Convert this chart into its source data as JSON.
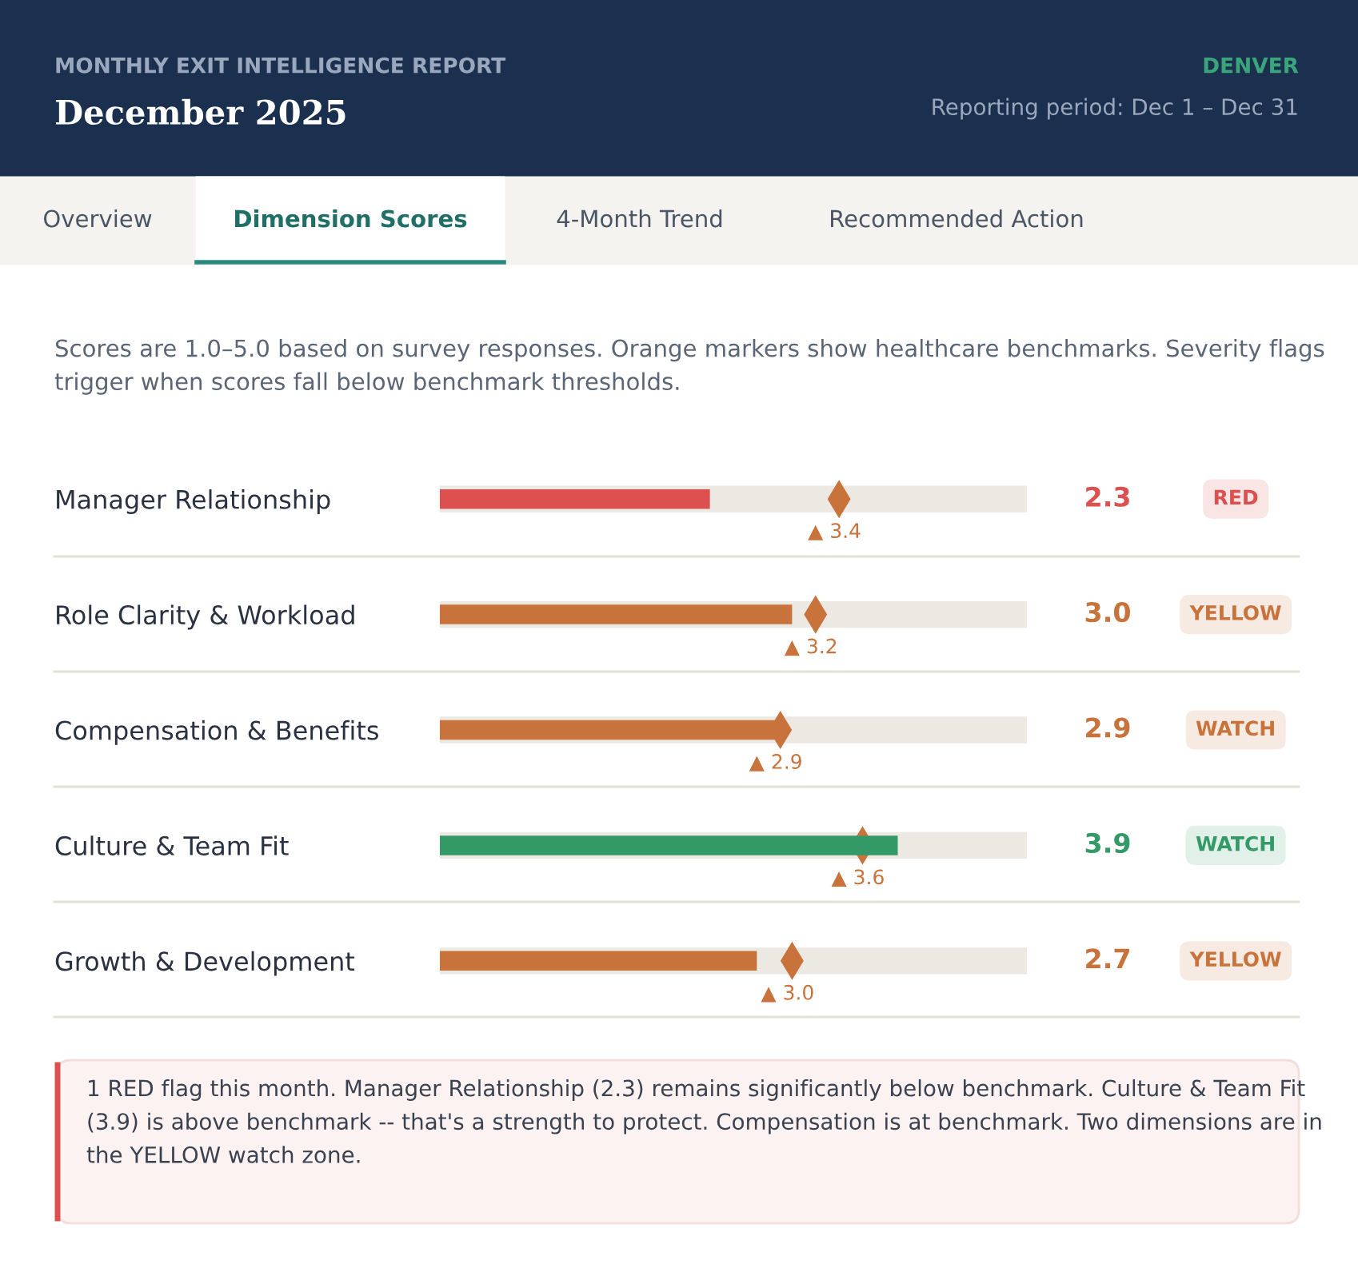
{
  "chart_data": {
    "type": "bar",
    "orientation": "horizontal",
    "title": "December 2025",
    "subtitle": "MONTHLY EXIT INTELLIGENCE REPORT",
    "categories": [
      "Manager Relationship",
      "Role Clarity & Workload",
      "Compensation & Benefits",
      "Culture & Team Fit",
      "Growth & Development"
    ],
    "series": [
      {
        "values": [
          2.3,
          3.0,
          2.9,
          3.9,
          2.7
        ],
        "colors": [
          "#dc5050",
          "#c8733c",
          "#c8733c",
          "#339966",
          "#c8733c"
        ],
        "value_labels": [
          "2.3",
          "3.0",
          "2.9",
          "3.9",
          "2.7"
        ]
      },
      {
        "type": "scatter",
        "marker": "diamond",
        "values": [
          3.4,
          3.2,
          2.9,
          3.6,
          3.0
        ],
        "color": "#c8733c",
        "value_labels": [
          "▲ 3.4",
          "▲ 3.2",
          "▲ 2.9",
          "▲ 3.6",
          "▲ 3.0"
        ]
      }
    ],
    "xlim": [
      0,
      5
    ],
    "tick_labels": "y",
    "grid": "y",
    "annotations": [
      "DENVER",
      "Reporting period: Dec 1 – Dec 31",
      "Overview",
      "Dimension Scores",
      "4-Month Trend",
      "Recommended Action",
      "Scores are 1.0–5.0 based on survey responses. Orange markers show healthcare benchmarks. Severity flags trigger when scores fall below benchmark thresholds.",
      "RED",
      "YELLOW",
      "WATCH",
      "WATCH",
      "YELLOW",
      "1 RED flag this month. Manager Relationship (2.3) remains significantly below benchmark. Culture & Team Fit (3.9) is above benchmark -- that's a strength to protect. Compensation is at benchmark. Two dimensions are in the YELLOW watch zone."
    ]
  }
}
